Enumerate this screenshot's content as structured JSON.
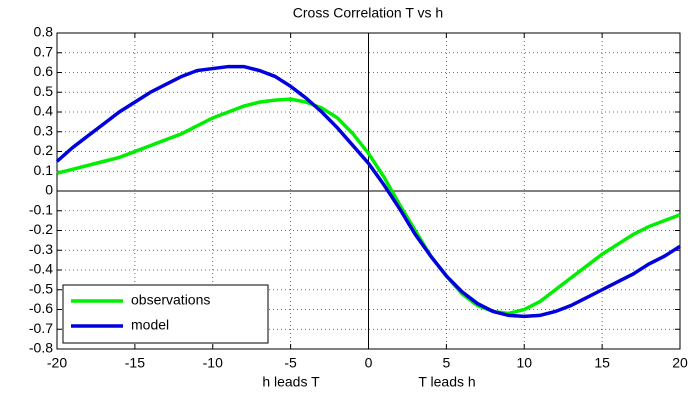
{
  "chart_data": {
    "type": "line",
    "title": "Cross Correlation T vs h",
    "x": [
      -20,
      -19,
      -18,
      -17,
      -16,
      -15,
      -14,
      -13,
      -12,
      -11,
      -10,
      -9,
      -8,
      -7,
      -6,
      -5,
      -4,
      -3,
      -2,
      -1,
      0,
      1,
      2,
      3,
      4,
      5,
      6,
      7,
      8,
      9,
      10,
      11,
      12,
      13,
      14,
      15,
      16,
      17,
      18,
      19,
      20
    ],
    "series": [
      {
        "name": "observations",
        "color": "#00ee00",
        "values": [
          0.09,
          0.11,
          0.13,
          0.15,
          0.17,
          0.2,
          0.23,
          0.26,
          0.29,
          0.33,
          0.37,
          0.4,
          0.43,
          0.45,
          0.46,
          0.465,
          0.45,
          0.42,
          0.37,
          0.29,
          0.19,
          0.07,
          -0.07,
          -0.2,
          -0.33,
          -0.43,
          -0.52,
          -0.58,
          -0.61,
          -0.62,
          -0.6,
          -0.56,
          -0.5,
          -0.44,
          -0.38,
          -0.32,
          -0.27,
          -0.22,
          -0.18,
          -0.15,
          -0.12
        ]
      },
      {
        "name": "model",
        "color": "#0000dd",
        "values": [
          0.15,
          0.22,
          0.28,
          0.34,
          0.4,
          0.45,
          0.5,
          0.54,
          0.58,
          0.61,
          0.62,
          0.63,
          0.63,
          0.61,
          0.58,
          0.53,
          0.47,
          0.4,
          0.32,
          0.23,
          0.14,
          0.03,
          -0.09,
          -0.22,
          -0.33,
          -0.43,
          -0.51,
          -0.57,
          -0.61,
          -0.63,
          -0.635,
          -0.63,
          -0.61,
          -0.58,
          -0.54,
          -0.5,
          -0.46,
          -0.42,
          -0.37,
          -0.33,
          -0.28
        ]
      }
    ],
    "annotations": [
      "h leads T",
      "T leads h"
    ],
    "xlim": [
      -20,
      20
    ],
    "xticks": [
      -20,
      -15,
      -10,
      -5,
      0,
      5,
      10,
      15,
      20
    ],
    "ylim": [
      -0.8,
      0.8
    ],
    "yticks": [
      -0.8,
      -0.7,
      -0.6,
      -0.5,
      -0.4,
      -0.3,
      -0.2,
      -0.1,
      0,
      0.1,
      0.2,
      0.3,
      0.4,
      0.5,
      0.6,
      0.7,
      0.8
    ],
    "grid": true,
    "legend": "lower left"
  }
}
